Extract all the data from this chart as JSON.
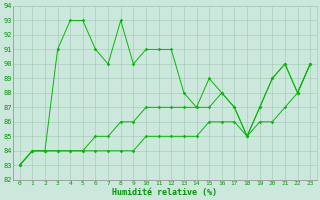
{
  "x": [
    0,
    1,
    2,
    3,
    4,
    5,
    6,
    7,
    8,
    9,
    10,
    11,
    12,
    13,
    14,
    15,
    16,
    17,
    18,
    19,
    20,
    21,
    22,
    23
  ],
  "line_main": [
    83,
    84,
    84,
    91,
    93,
    93,
    91,
    90,
    93,
    90,
    91,
    91,
    91,
    88,
    87,
    89,
    88,
    87,
    85,
    87,
    89,
    90,
    88,
    90
  ],
  "line_mid": [
    83,
    84,
    84,
    84,
    84,
    84,
    85,
    85,
    86,
    86,
    87,
    87,
    87,
    87,
    87,
    87,
    88,
    87,
    85,
    87,
    89,
    90,
    88,
    90
  ],
  "line_low": [
    83,
    84,
    84,
    84,
    84,
    84,
    84,
    84,
    84,
    84,
    85,
    85,
    85,
    85,
    85,
    86,
    86,
    86,
    85,
    86,
    86,
    87,
    88,
    90
  ],
  "ylim": [
    82,
    94
  ],
  "xlim_min": -0.5,
  "xlim_max": 23.5,
  "yticks": [
    82,
    83,
    84,
    85,
    86,
    87,
    88,
    89,
    90,
    91,
    92,
    93,
    94
  ],
  "xticks": [
    0,
    1,
    2,
    3,
    4,
    5,
    6,
    7,
    8,
    9,
    10,
    11,
    12,
    13,
    14,
    15,
    16,
    17,
    18,
    19,
    20,
    21,
    22,
    23
  ],
  "xlabel": "Humidité relative (%)",
  "bg_color": "#cce8dc",
  "grid_color": "#aaccbb",
  "line_color": "#00bb00",
  "tick_color": "#009900",
  "xlabel_color": "#009900",
  "spine_color": "#888888"
}
